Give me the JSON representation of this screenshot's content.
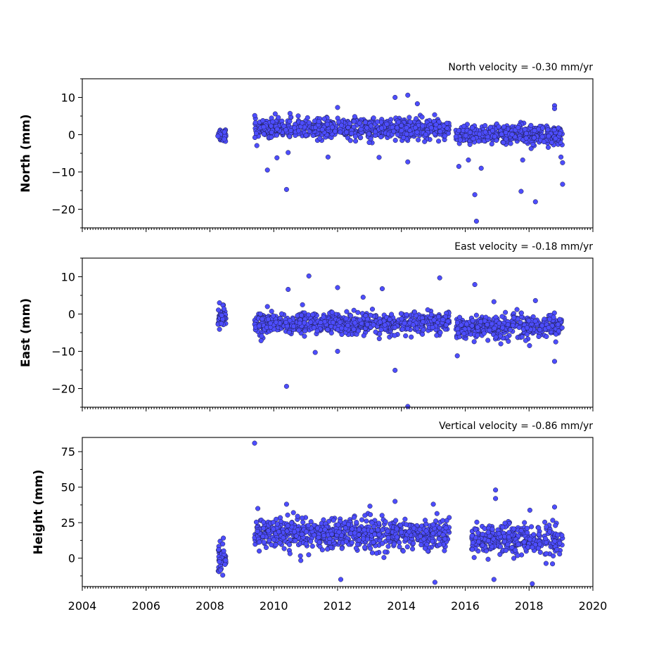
{
  "chart_data": [
    {
      "type": "scatter",
      "title": "North velocity = -0.30 mm/yr",
      "ylabel": "North (mm)",
      "xlim": [
        2004,
        2020
      ],
      "ylim": [
        -25,
        15
      ],
      "yticks": [
        10,
        0,
        -10,
        -20
      ],
      "ytick_labels": [
        "10",
        "0",
        "−10",
        "−20"
      ],
      "color": "#4d4dff",
      "clusters": [
        {
          "x_range": [
            2008.25,
            2008.5
          ],
          "y_center": 0.0,
          "y_spread": 1.0
        },
        {
          "x_range": [
            2009.4,
            2015.5
          ],
          "y_center": 1.6,
          "y_spread": 1.3
        },
        {
          "x_range": [
            2015.7,
            2019.05
          ],
          "y_center": 0.0,
          "y_spread": 1.3
        }
      ],
      "outliers": [
        {
          "x": 2009.8,
          "y": -9.5
        },
        {
          "x": 2010.4,
          "y": -14.7
        },
        {
          "x": 2010.1,
          "y": -6.2
        },
        {
          "x": 2010.45,
          "y": -4.8
        },
        {
          "x": 2013.8,
          "y": 10.0
        },
        {
          "x": 2014.2,
          "y": 10.6
        },
        {
          "x": 2014.5,
          "y": 8.3
        },
        {
          "x": 2014.2,
          "y": -7.3
        },
        {
          "x": 2013.3,
          "y": -6.1
        },
        {
          "x": 2011.7,
          "y": -6.0
        },
        {
          "x": 2012.0,
          "y": 7.3
        },
        {
          "x": 2015.8,
          "y": -8.5
        },
        {
          "x": 2016.3,
          "y": -16.1
        },
        {
          "x": 2016.35,
          "y": -23.2
        },
        {
          "x": 2016.5,
          "y": -9.0
        },
        {
          "x": 2017.75,
          "y": -15.2
        },
        {
          "x": 2018.2,
          "y": -18.0
        },
        {
          "x": 2018.8,
          "y": 7.8
        },
        {
          "x": 2018.8,
          "y": 7.0
        },
        {
          "x": 2019.05,
          "y": -13.3
        },
        {
          "x": 2019.05,
          "y": -7.5
        },
        {
          "x": 2019.0,
          "y": -6.0
        },
        {
          "x": 2017.8,
          "y": -6.8
        },
        {
          "x": 2016.1,
          "y": -6.8
        }
      ]
    },
    {
      "type": "scatter",
      "title": "East velocity = -0.18 mm/yr",
      "ylabel": "East (mm)",
      "xlim": [
        2004,
        2020
      ],
      "ylim": [
        -25,
        15
      ],
      "yticks": [
        10,
        0,
        -10,
        -20
      ],
      "ytick_labels": [
        "10",
        "0",
        "−10",
        "−20"
      ],
      "color": "#4d4dff",
      "clusters": [
        {
          "x_range": [
            2008.25,
            2008.5
          ],
          "y_center": -1.0,
          "y_spread": 1.5
        },
        {
          "x_range": [
            2009.4,
            2015.5
          ],
          "y_center": -2.5,
          "y_spread": 1.4
        },
        {
          "x_range": [
            2015.7,
            2019.05
          ],
          "y_center": -3.5,
          "y_spread": 1.5
        }
      ],
      "outliers": [
        {
          "x": 2010.4,
          "y": -19.4
        },
        {
          "x": 2010.45,
          "y": 6.6
        },
        {
          "x": 2011.1,
          "y": 10.2
        },
        {
          "x": 2012.0,
          "y": 7.1
        },
        {
          "x": 2012.0,
          "y": -10.0
        },
        {
          "x": 2012.8,
          "y": 4.5
        },
        {
          "x": 2013.4,
          "y": 6.8
        },
        {
          "x": 2013.8,
          "y": -15.1
        },
        {
          "x": 2014.2,
          "y": -24.8
        },
        {
          "x": 2015.2,
          "y": 9.7
        },
        {
          "x": 2016.3,
          "y": 7.9
        },
        {
          "x": 2015.75,
          "y": -11.2
        },
        {
          "x": 2018.8,
          "y": -12.7
        },
        {
          "x": 2011.3,
          "y": -10.3
        },
        {
          "x": 2009.8,
          "y": 2.0
        },
        {
          "x": 2018.2,
          "y": 3.6
        },
        {
          "x": 2016.9,
          "y": 3.3
        },
        {
          "x": 2010.9,
          "y": 2.5
        },
        {
          "x": 2008.3,
          "y": 3.0
        },
        {
          "x": 2008.3,
          "y": -4.1
        }
      ]
    },
    {
      "type": "scatter",
      "title": "Vertical velocity = -0.86 mm/yr",
      "ylabel": "Height (mm)",
      "xlim": [
        2004,
        2020
      ],
      "ylim": [
        -20,
        85
      ],
      "yticks": [
        75,
        50,
        25,
        0
      ],
      "ytick_labels": [
        "75",
        "50",
        "25",
        "0"
      ],
      "xticks": [
        2004,
        2006,
        2008,
        2010,
        2012,
        2014,
        2016,
        2018,
        2020
      ],
      "xtick_labels": [
        "2004",
        "2006",
        "2008",
        "2010",
        "2012",
        "2014",
        "2016",
        "2018",
        "2020"
      ],
      "color": "#4d4dff",
      "clusters": [
        {
          "x_range": [
            2008.25,
            2008.5
          ],
          "y_center": 0.0,
          "y_spread": 5.0
        },
        {
          "x_range": [
            2009.4,
            2015.5
          ],
          "y_center": 17.0,
          "y_spread": 5.5
        },
        {
          "x_range": [
            2016.2,
            2019.05
          ],
          "y_center": 13.0,
          "y_spread": 5.5
        }
      ],
      "outliers": [
        {
          "x": 2009.4,
          "y": 81.0
        },
        {
          "x": 2016.95,
          "y": 48.0
        },
        {
          "x": 2016.95,
          "y": 42.0
        },
        {
          "x": 2015.0,
          "y": 38.0
        },
        {
          "x": 2013.8,
          "y": 40.0
        },
        {
          "x": 2012.1,
          "y": -15.0
        },
        {
          "x": 2015.05,
          "y": -17.0
        },
        {
          "x": 2018.1,
          "y": -18.0
        },
        {
          "x": 2016.9,
          "y": -15.0
        },
        {
          "x": 2010.4,
          "y": 38.0
        },
        {
          "x": 2018.8,
          "y": 36.0
        },
        {
          "x": 2009.5,
          "y": 35.0
        },
        {
          "x": 2008.4,
          "y": 10.0
        },
        {
          "x": 2008.4,
          "y": -12.0
        }
      ]
    }
  ]
}
